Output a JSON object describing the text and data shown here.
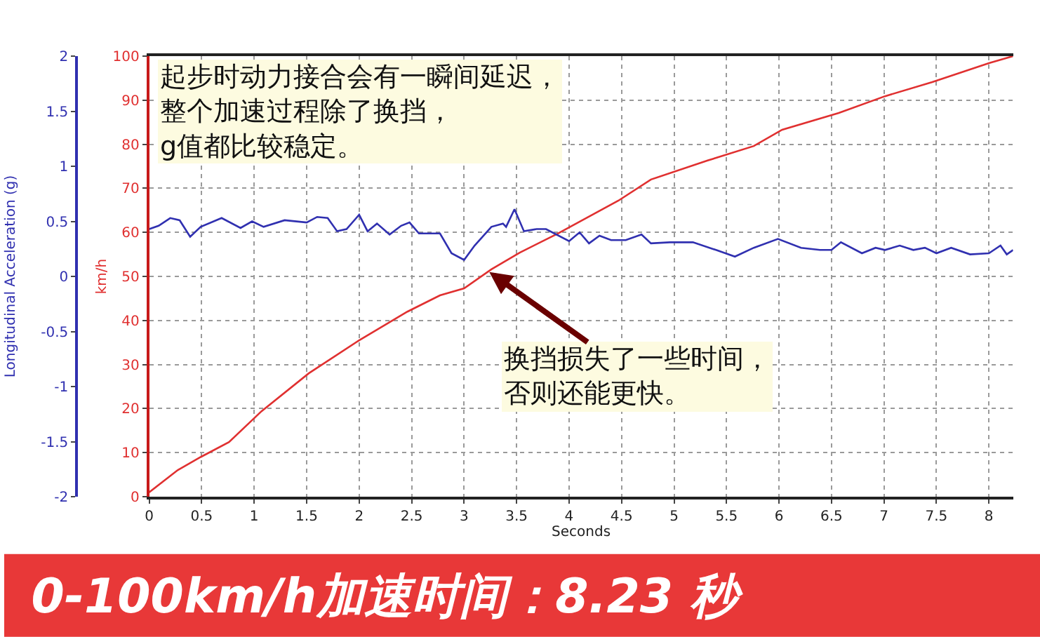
{
  "chart_data": {
    "type": "line",
    "title": "0-100km/h加速时间：8.23 秒",
    "xlabel": "Seconds",
    "ylabel": "km/h",
    "y2label": "Longitudinal Acceleration (g)",
    "xlim": [
      0,
      8.23
    ],
    "xticks": [
      0,
      0.5,
      1,
      1.5,
      2,
      2.5,
      3,
      3.5,
      4,
      4.5,
      5,
      5.5,
      6,
      6.5,
      7,
      7.5,
      8
    ],
    "ylim": [
      0,
      100
    ],
    "yticks": [
      0,
      10,
      20,
      30,
      40,
      50,
      60,
      70,
      80,
      90,
      100
    ],
    "y2lim": [
      -2,
      2
    ],
    "y2ticks": [
      -2,
      -1.5,
      -1,
      -0.5,
      0,
      0.5,
      1,
      1.5,
      2
    ],
    "grid": true,
    "marker": "none",
    "line_style": "solid",
    "series": [
      {
        "color": "#e03030",
        "x": [
          0,
          0.27,
          0.49,
          0.76,
          1.07,
          1.52,
          2.0,
          2.46,
          2.77,
          3.0,
          3.26,
          3.53,
          3.89,
          4.47,
          4.78,
          5.32,
          5.76,
          6.03,
          6.57,
          7.01,
          7.46,
          8.0,
          8.23
        ],
        "values": [
          1,
          6,
          9,
          12.4,
          19.4,
          28,
          35.5,
          42,
          45.7,
          47.3,
          51.6,
          55.4,
          59.7,
          67.2,
          72,
          76.3,
          79.6,
          83.3,
          87.1,
          90.9,
          94.1,
          98.4,
          100
        ]
      },
      {
        "color": "#3030b0",
        "axis": "y2",
        "x": [
          0,
          0.09,
          0.2,
          0.29,
          0.39,
          0.49,
          0.69,
          0.87,
          0.98,
          1.09,
          1.29,
          1.5,
          1.6,
          1.7,
          1.79,
          1.88,
          2.0,
          2.08,
          2.17,
          2.29,
          2.4,
          2.48,
          2.57,
          2.77,
          2.88,
          3.0,
          3.1,
          3.26,
          3.37,
          3.4,
          3.48,
          3.57,
          3.69,
          3.78,
          4.0,
          4.1,
          4.19,
          4.29,
          4.4,
          4.54,
          4.69,
          4.78,
          4.96,
          5.18,
          5.4,
          5.58,
          5.76,
          5.99,
          6.21,
          6.39,
          6.5,
          6.59,
          6.79,
          6.92,
          7.01,
          7.15,
          7.28,
          7.39,
          7.5,
          7.64,
          7.82,
          8.0,
          8.11,
          8.17,
          8.23
        ],
        "values": [
          0.43,
          0.46,
          0.53,
          0.51,
          0.36,
          0.45,
          0.53,
          0.44,
          0.5,
          0.45,
          0.51,
          0.49,
          0.54,
          0.53,
          0.41,
          0.43,
          0.56,
          0.41,
          0.48,
          0.38,
          0.46,
          0.49,
          0.39,
          0.39,
          0.21,
          0.15,
          0.28,
          0.45,
          0.48,
          0.45,
          0.61,
          0.41,
          0.43,
          0.43,
          0.32,
          0.4,
          0.3,
          0.37,
          0.33,
          0.33,
          0.38,
          0.3,
          0.31,
          0.31,
          0.24,
          0.18,
          0.26,
          0.34,
          0.26,
          0.24,
          0.24,
          0.31,
          0.21,
          0.26,
          0.24,
          0.28,
          0.24,
          0.26,
          0.21,
          0.26,
          0.2,
          0.21,
          0.28,
          0.2,
          0.24
        ]
      }
    ],
    "annotations": [
      "起步时动力接合会有一瞬间延迟，整个加速过程除了换挡，g值都比较稳定。",
      {
        "text": "换挡损失了一些时间，否则还能更快。",
        "x": 3.24,
        "y": 51
      }
    ]
  }
}
